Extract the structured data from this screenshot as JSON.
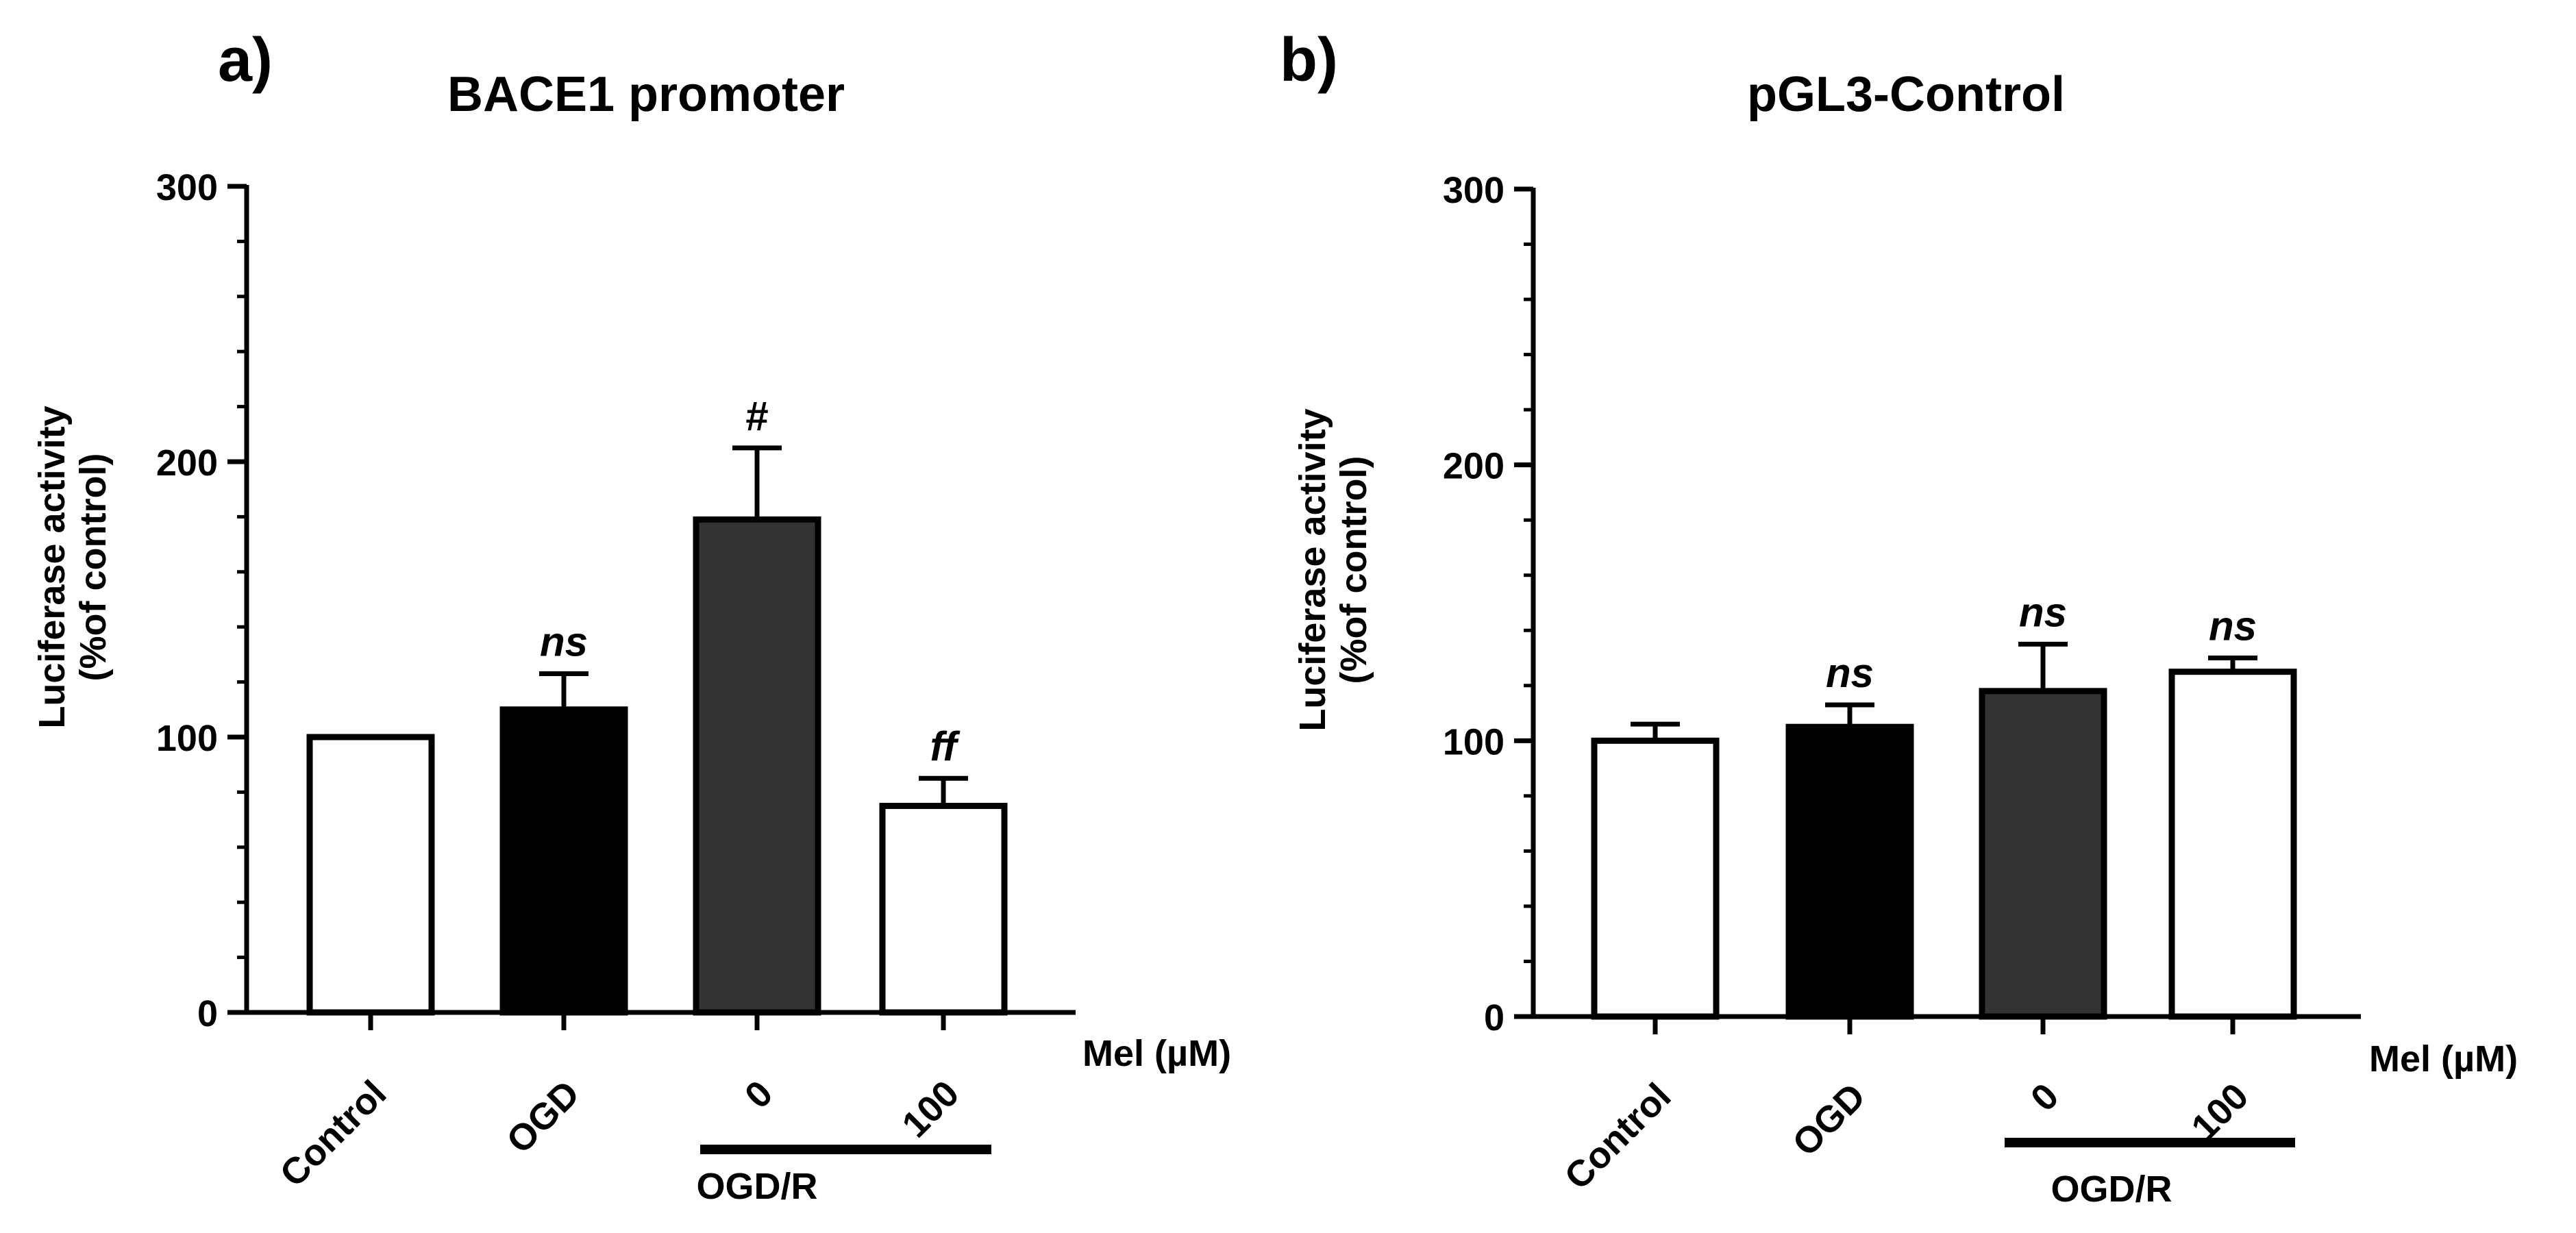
{
  "chart_data": [
    {
      "type": "bar",
      "panel_label": "a)",
      "title": "BACE1 promoter",
      "ylabel_line1": "Luciferase activity",
      "ylabel_line2": "(%of control)",
      "xlabel": "Mel (µM)",
      "ylim": [
        0,
        300
      ],
      "yticks": [
        "0",
        "100",
        "200",
        "300"
      ],
      "categories": [
        "Control",
        "OGD",
        "0",
        "100"
      ],
      "values": [
        100,
        110,
        179,
        75
      ],
      "errors": [
        0,
        13,
        26,
        10
      ],
      "annotations": [
        "",
        "ns",
        "#",
        "ff"
      ],
      "annotation_italic": [
        false,
        true,
        false,
        true
      ],
      "bar_colors": [
        "#ffffff",
        "#000000",
        "#333333",
        "#ffffff"
      ],
      "group_label": "OGD/R",
      "group_categories": [
        2,
        3
      ]
    },
    {
      "type": "bar",
      "panel_label": "b)",
      "title": "pGL3-Control",
      "ylabel_line1": "Luciferase activity",
      "ylabel_line2": "(%of control)",
      "xlabel": "Mel (µM)",
      "ylim": [
        0,
        300
      ],
      "yticks": [
        "0",
        "100",
        "200",
        "300"
      ],
      "categories": [
        "Control",
        "OGD",
        "0",
        "100"
      ],
      "values": [
        100,
        105,
        118,
        125
      ],
      "errors": [
        6,
        8,
        17,
        5
      ],
      "annotations": [
        "",
        "ns",
        "ns",
        "ns"
      ],
      "annotation_italic": [
        false,
        true,
        true,
        true
      ],
      "bar_colors": [
        "#ffffff",
        "#000000",
        "#333333",
        "#ffffff"
      ],
      "group_label": "OGD/R",
      "group_categories": [
        2,
        3
      ]
    }
  ]
}
